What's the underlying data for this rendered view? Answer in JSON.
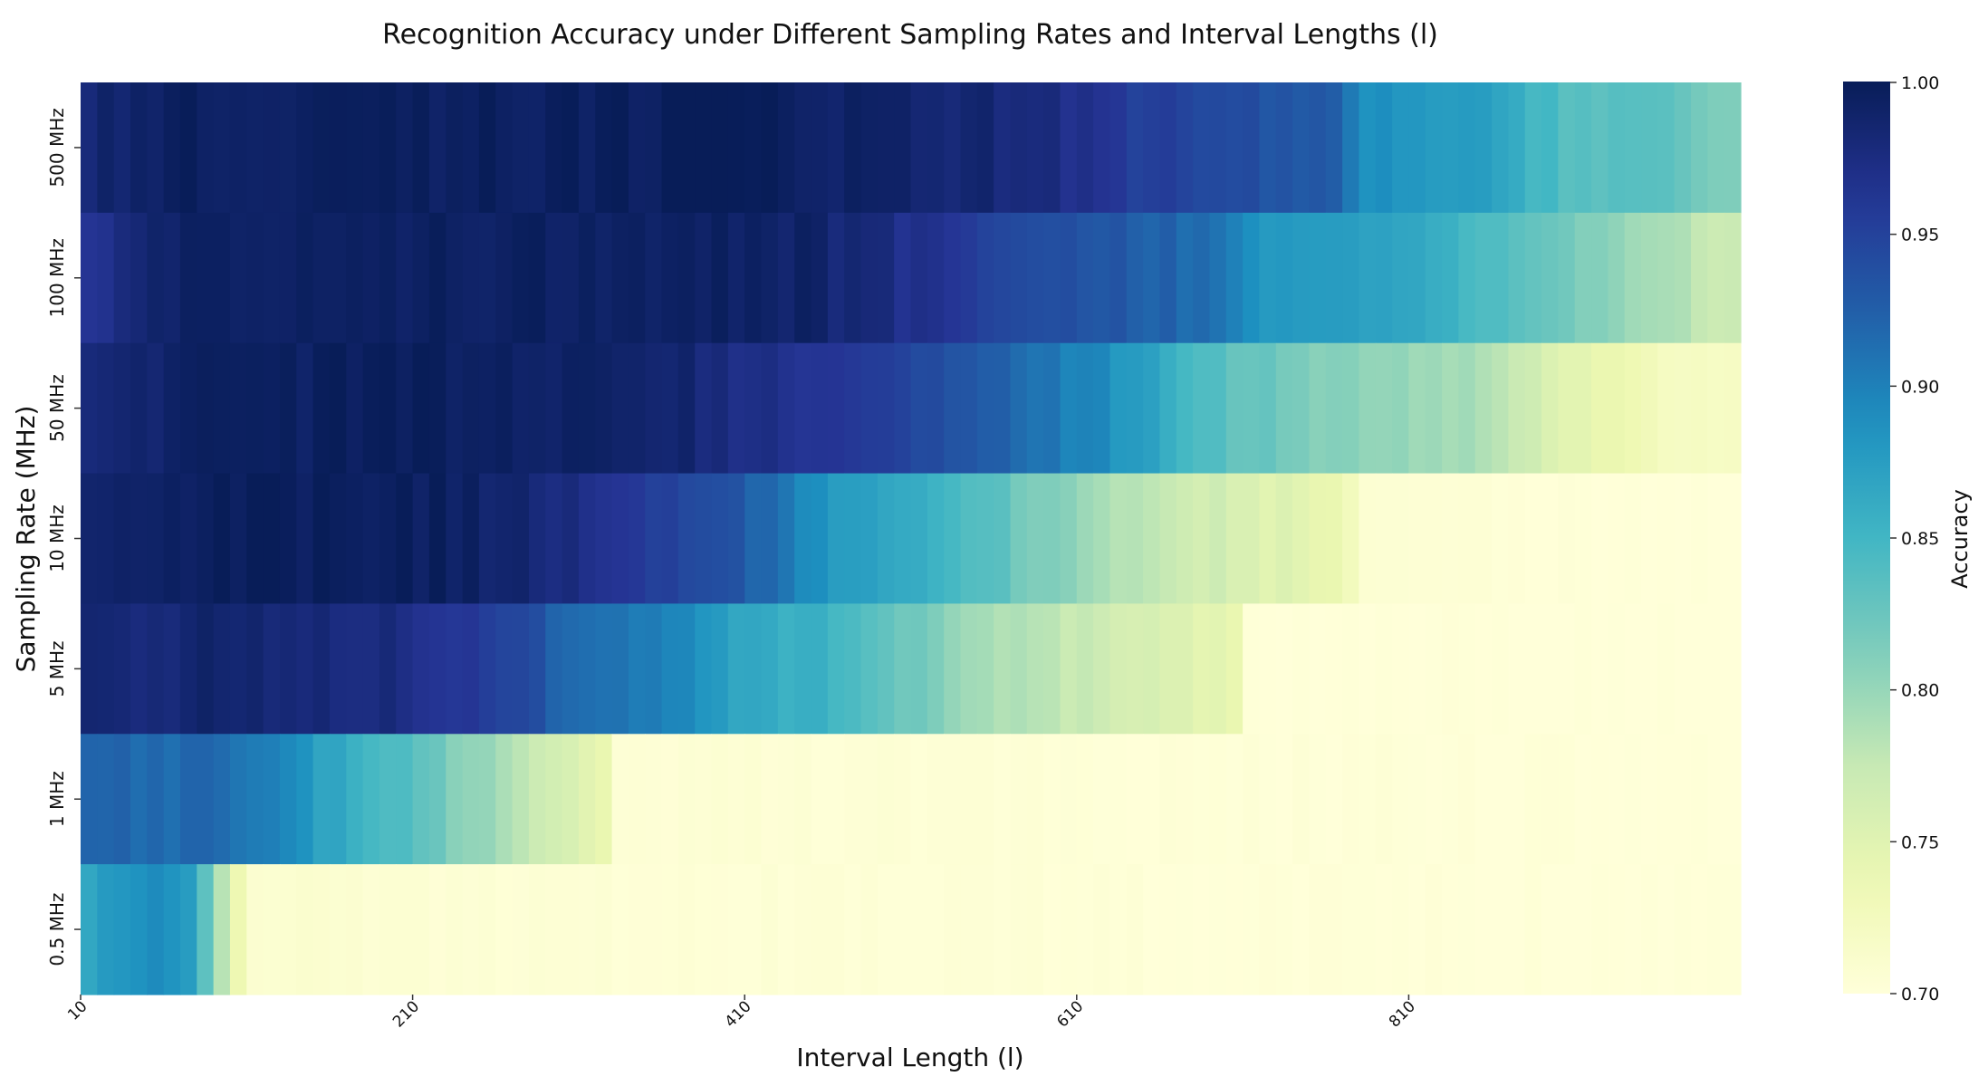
{
  "chart_data": {
    "type": "heatmap",
    "title": "Recognition Accuracy under Different Sampling Rates and Interval Lengths (l)",
    "xlabel": "Interval Length (l)",
    "ylabel": "Sampling Rate (MHz)",
    "colorbar_label": "Accuracy",
    "colormap": "YlGnBu",
    "colorbar_range": [
      0.7,
      1.0
    ],
    "colorbar_ticks": [
      "0.70",
      "0.75",
      "0.80",
      "0.85",
      "0.90",
      "0.95",
      "1.00"
    ],
    "x": {
      "start": 10,
      "step": 10,
      "count": 100
    },
    "x_tick_labels": [
      "10",
      "210",
      "410",
      "610",
      "810"
    ],
    "rows": [
      "500 MHz",
      "100 MHz",
      "50 MHz",
      "10 MHz",
      "5 MHz",
      "1 MHz",
      "0.5 MHz"
    ],
    "row_profiles": [
      [
        [
          10,
          0.985
        ],
        [
          60,
          0.995
        ],
        [
          150,
          0.995
        ],
        [
          250,
          0.995
        ],
        [
          400,
          0.998
        ],
        [
          480,
          0.99
        ],
        [
          570,
          0.98
        ],
        [
          640,
          0.955
        ],
        [
          700,
          0.94
        ],
        [
          760,
          0.925
        ],
        [
          780,
          0.89
        ],
        [
          850,
          0.87
        ],
        [
          900,
          0.84
        ],
        [
          960,
          0.83
        ],
        [
          1000,
          0.81
        ]
      ],
      [
        [
          10,
          0.965
        ],
        [
          50,
          0.99
        ],
        [
          200,
          0.995
        ],
        [
          340,
          0.995
        ],
        [
          440,
          0.99
        ],
        [
          500,
          0.97
        ],
        [
          560,
          0.95
        ],
        [
          620,
          0.935
        ],
        [
          680,
          0.915
        ],
        [
          720,
          0.88
        ],
        [
          800,
          0.87
        ],
        [
          860,
          0.84
        ],
        [
          900,
          0.82
        ],
        [
          960,
          0.79
        ],
        [
          1000,
          0.77
        ]
      ],
      [
        [
          10,
          0.975
        ],
        [
          70,
          0.995
        ],
        [
          200,
          0.995
        ],
        [
          350,
          0.99
        ],
        [
          400,
          0.975
        ],
        [
          460,
          0.96
        ],
        [
          520,
          0.94
        ],
        [
          580,
          0.91
        ],
        [
          620,
          0.89
        ],
        [
          660,
          0.86
        ],
        [
          700,
          0.83
        ],
        [
          760,
          0.81
        ],
        [
          840,
          0.79
        ],
        [
          900,
          0.75
        ],
        [
          960,
          0.72
        ],
        [
          1000,
          0.72
        ]
      ],
      [
        [
          10,
          0.985
        ],
        [
          90,
          0.998
        ],
        [
          220,
          0.995
        ],
        [
          270,
          0.985
        ],
        [
          340,
          0.96
        ],
        [
          400,
          0.93
        ],
        [
          460,
          0.88
        ],
        [
          500,
          0.86
        ],
        [
          560,
          0.83
        ],
        [
          620,
          0.79
        ],
        [
          700,
          0.76
        ],
        [
          760,
          0.74
        ],
        [
          780,
          0.705
        ],
        [
          1000,
          0.7
        ]
      ],
      [
        [
          10,
          0.98
        ],
        [
          80,
          0.985
        ],
        [
          200,
          0.975
        ],
        [
          270,
          0.945
        ],
        [
          300,
          0.915
        ],
        [
          360,
          0.9
        ],
        [
          400,
          0.87
        ],
        [
          460,
          0.85
        ],
        [
          520,
          0.81
        ],
        [
          560,
          0.79
        ],
        [
          640,
          0.76
        ],
        [
          700,
          0.745
        ],
        [
          710,
          0.702
        ],
        [
          1000,
          0.7
        ]
      ],
      [
        [
          10,
          0.92
        ],
        [
          80,
          0.915
        ],
        [
          120,
          0.9
        ],
        [
          150,
          0.87
        ],
        [
          200,
          0.84
        ],
        [
          230,
          0.81
        ],
        [
          260,
          0.79
        ],
        [
          300,
          0.755
        ],
        [
          320,
          0.74
        ],
        [
          330,
          0.705
        ],
        [
          1000,
          0.7
        ]
      ],
      [
        [
          10,
          0.865
        ],
        [
          30,
          0.88
        ],
        [
          60,
          0.89
        ],
        [
          70,
          0.88
        ],
        [
          80,
          0.83
        ],
        [
          90,
          0.78
        ],
        [
          100,
          0.74
        ],
        [
          110,
          0.71
        ],
        [
          200,
          0.705
        ],
        [
          1000,
          0.7
        ]
      ]
    ]
  }
}
